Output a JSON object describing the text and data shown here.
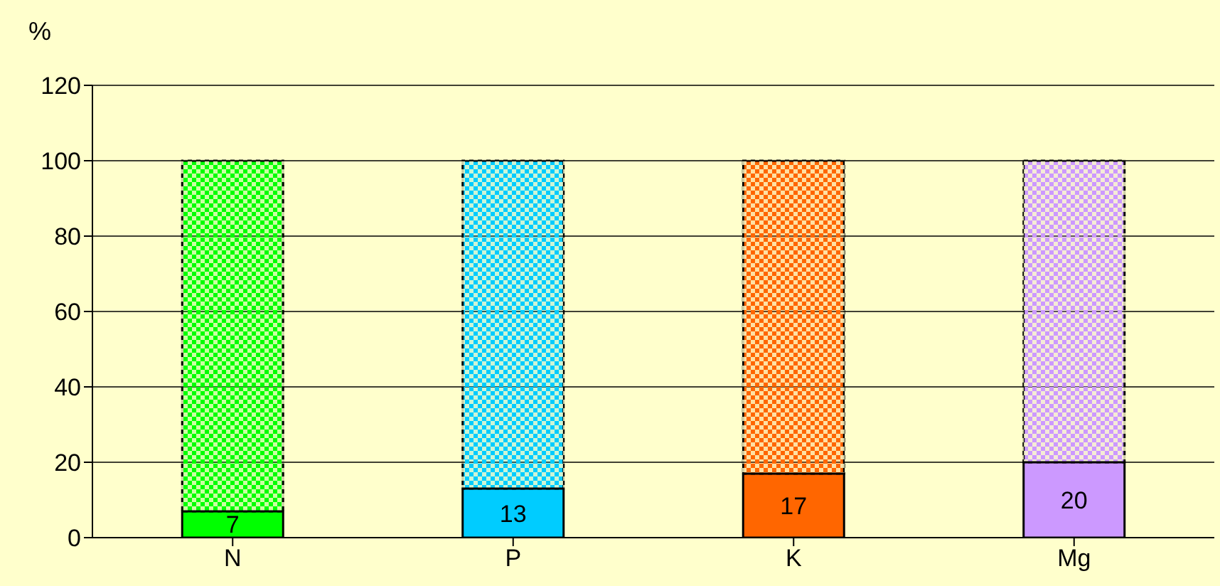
{
  "chart_data": {
    "type": "bar",
    "stacked": true,
    "ylabel": "%",
    "categories": [
      "N",
      "P",
      "K",
      "Mg"
    ],
    "series": [
      {
        "colors": [
          "#00ff00",
          "#00ccff",
          "#ff6600",
          "#cc99ff"
        ],
        "values": [
          7,
          13,
          17,
          20
        ],
        "value_labels": [
          "7",
          "13",
          "17",
          "20"
        ]
      },
      {
        "colors": [
          "#00ff00",
          "#00ccff",
          "#ff6600",
          "#cc99ff"
        ],
        "values": [
          93,
          87,
          83,
          80
        ]
      }
    ],
    "ylim": [
      0,
      120
    ],
    "yticks": [
      0,
      20,
      40,
      60,
      80,
      100,
      120
    ],
    "grid": "y"
  }
}
